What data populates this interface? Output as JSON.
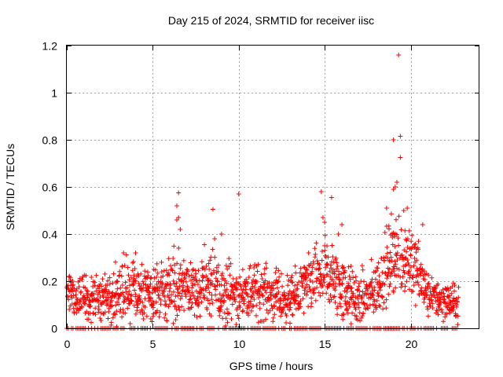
{
  "chart_data": {
    "type": "scatter",
    "title": "Day 215 of 2024, SRMTID for receiver iisc",
    "xlabel": "GPS time / hours",
    "ylabel": "SRMTID / TECUs",
    "xlim": [
      0,
      24
    ],
    "ylim": [
      0,
      1.2
    ],
    "xticks": [
      0,
      5,
      10,
      15,
      20
    ],
    "yticks": [
      0,
      0.2,
      0.4,
      0.6,
      0.8,
      1,
      1.2
    ],
    "xtick_labels": [
      "0",
      "5",
      "10",
      "15",
      "20"
    ],
    "ytick_labels": [
      "0",
      "0.2",
      "0.4",
      "0.6",
      "0.8",
      "1",
      "1.2"
    ],
    "grid": true,
    "marker": "plus",
    "color": "#ff0000",
    "series": [
      {
        "name": "SRMTID",
        "profile": [
          {
            "t": 0.0,
            "base": 0.14,
            "spread": 0.08
          },
          {
            "t": 1.0,
            "base": 0.13,
            "spread": 0.07
          },
          {
            "t": 2.0,
            "base": 0.12,
            "spread": 0.06
          },
          {
            "t": 3.0,
            "base": 0.16,
            "spread": 0.1
          },
          {
            "t": 4.0,
            "base": 0.15,
            "spread": 0.09
          },
          {
            "t": 5.0,
            "base": 0.12,
            "spread": 0.08
          },
          {
            "t": 6.0,
            "base": 0.18,
            "spread": 0.11
          },
          {
            "t": 7.0,
            "base": 0.17,
            "spread": 0.1
          },
          {
            "t": 8.0,
            "base": 0.19,
            "spread": 0.11
          },
          {
            "t": 9.0,
            "base": 0.15,
            "spread": 0.1
          },
          {
            "t": 10.0,
            "base": 0.14,
            "spread": 0.09
          },
          {
            "t": 11.0,
            "base": 0.16,
            "spread": 0.09
          },
          {
            "t": 12.0,
            "base": 0.14,
            "spread": 0.08
          },
          {
            "t": 13.0,
            "base": 0.12,
            "spread": 0.07
          },
          {
            "t": 14.0,
            "base": 0.18,
            "spread": 0.09
          },
          {
            "t": 15.0,
            "base": 0.24,
            "spread": 0.12
          },
          {
            "t": 16.0,
            "base": 0.16,
            "spread": 0.1
          },
          {
            "t": 17.0,
            "base": 0.12,
            "spread": 0.08
          },
          {
            "t": 18.0,
            "base": 0.16,
            "spread": 0.09
          },
          {
            "t": 19.0,
            "base": 0.32,
            "spread": 0.14
          },
          {
            "t": 20.0,
            "base": 0.3,
            "spread": 0.13
          },
          {
            "t": 21.0,
            "base": 0.14,
            "spread": 0.07
          },
          {
            "t": 22.0,
            "base": 0.12,
            "spread": 0.06
          },
          {
            "t": 22.8,
            "base": 0.1,
            "spread": 0.05
          }
        ],
        "outliers": [
          [
            19.3,
            1.16
          ],
          [
            19.4,
            0.815
          ],
          [
            19.0,
            0.8
          ],
          [
            19.4,
            0.725
          ],
          [
            19.2,
            0.62
          ],
          [
            19.1,
            0.6
          ],
          [
            19.0,
            0.59
          ],
          [
            19.8,
            0.51
          ],
          [
            19.6,
            0.5
          ],
          [
            18.6,
            0.51
          ],
          [
            6.5,
            0.575
          ],
          [
            6.4,
            0.52
          ],
          [
            6.5,
            0.47
          ],
          [
            6.4,
            0.46
          ],
          [
            6.6,
            0.42
          ],
          [
            8.5,
            0.505
          ],
          [
            10.0,
            0.57
          ],
          [
            14.8,
            0.58
          ],
          [
            15.4,
            0.555
          ],
          [
            14.9,
            0.47
          ],
          [
            15.0,
            0.45
          ],
          [
            16.0,
            0.44
          ],
          [
            15.8,
            0.4
          ],
          [
            20.7,
            0.44
          ],
          [
            4.0,
            0.32
          ],
          [
            3.3,
            0.32
          ],
          [
            9.0,
            0.4
          ],
          [
            8.6,
            0.38
          ]
        ],
        "zero_band_start": 0.0,
        "zero_band_end": 22.9
      }
    ]
  }
}
